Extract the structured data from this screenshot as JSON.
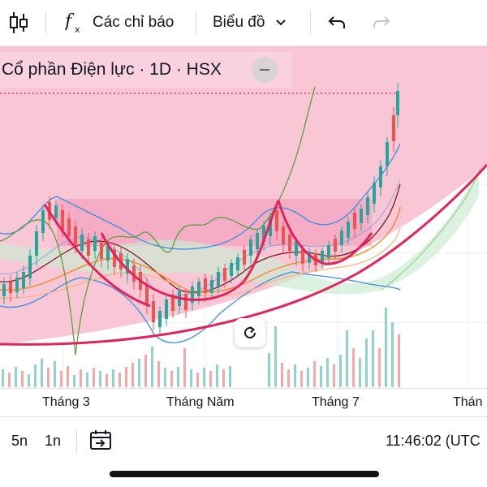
{
  "toolbar": {
    "indicators_label": "Các chỉ báo",
    "chart_type_label": "Biểu đồ",
    "icons": [
      "candlestick-icon",
      "function-fx-icon",
      "chevron-down-icon",
      "undo-icon",
      "redo-icon"
    ]
  },
  "legend": {
    "title": "Cổ phần Điện lực · 1D · HSX"
  },
  "chart_data": {
    "type": "candlestick",
    "x_tick_labels": [
      "Tháng 3",
      "Tháng Năm",
      "Tháng 7",
      "Thán"
    ],
    "colors": {
      "up": "#26a69a",
      "down": "#ef5350",
      "background_fill": "#f9c6d6",
      "highlight_band": "#f2a2bd",
      "pattern_line": "#e0245e",
      "bollinger": "#3b8de0",
      "ma_dark": "#7a0f1a",
      "ma_orange": "#f28c28",
      "lagging_green": "#5aa03c"
    }
  },
  "bottom": {
    "ranges": [
      "5n",
      "1n"
    ],
    "time": "11:46:02 (UTC"
  }
}
